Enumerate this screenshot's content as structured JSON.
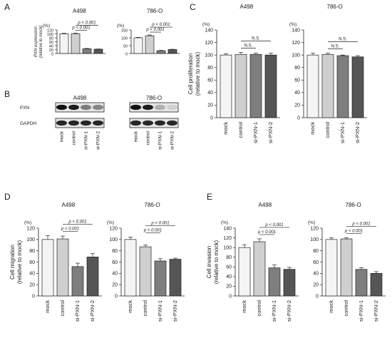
{
  "panel_letters": {
    "A": "A",
    "B": "B",
    "C": "C",
    "D": "D",
    "E": "E"
  },
  "blot": {
    "cells": [
      "A498",
      "786-O"
    ],
    "rows": [
      "PXN",
      "GAPDH"
    ],
    "lanes": [
      "mock",
      "control",
      "si-PXN-1",
      "si-PXN-2"
    ],
    "bands": {
      "A498": {
        "PXN": [
          1.0,
          0.95,
          0.5,
          0.45
        ],
        "GAPDH": [
          0.9,
          0.9,
          0.9,
          0.9
        ]
      },
      "786-O": {
        "PXN": [
          1.0,
          0.95,
          0.25,
          0.1
        ],
        "GAPDH": [
          0.9,
          0.9,
          0.9,
          0.9
        ]
      }
    }
  },
  "chart_data": [
    {
      "id": "A1",
      "type": "bar",
      "panel": "A",
      "title": "A498",
      "ylabel": "PXN expression\n(relative to mock)",
      "unit": "(%)",
      "ylim": [
        0,
        120
      ],
      "yticks": [
        0,
        20,
        40,
        60,
        80,
        100,
        120
      ],
      "categories": [
        "mock",
        "control",
        "si-PXN-1",
        "si-PXN-2"
      ],
      "values": [
        100,
        101,
        24,
        22
      ],
      "errors": [
        3,
        3,
        2,
        1
      ],
      "sig": [
        {
          "from": 1,
          "to": 2,
          "label": "p < 0.001"
        },
        {
          "from": 1,
          "to": 3,
          "label": "p < 0.001"
        }
      ],
      "show_categories": false
    },
    {
      "id": "A2",
      "type": "bar",
      "panel": "A",
      "title": "786-O",
      "ylabel": "",
      "unit": "(%)",
      "ylim": [
        0,
        150
      ],
      "yticks": [
        0,
        50,
        100,
        150
      ],
      "categories": [
        "mock",
        "control",
        "si-PXN-1",
        "si-PXN-2"
      ],
      "values": [
        100,
        113,
        18,
        25
      ],
      "errors": [
        3,
        5,
        2,
        2
      ],
      "sig": [
        {
          "from": 1,
          "to": 2,
          "label": "p < 0.001"
        },
        {
          "from": 1,
          "to": 3,
          "label": "p < 0.001"
        }
      ],
      "show_categories": false
    },
    {
      "id": "C1",
      "type": "bar",
      "panel": "C",
      "title": "A498",
      "ylabel": "Cell proliferation\n(relative to mock)",
      "unit": "(%)",
      "ylim": [
        0,
        140
      ],
      "yticks": [
        0,
        20,
        40,
        60,
        80,
        100,
        120,
        140
      ],
      "categories": [
        "mock",
        "control",
        "si-PXN-1",
        "si-PXN-2"
      ],
      "values": [
        100,
        101,
        101,
        100
      ],
      "errors": [
        2,
        3,
        2,
        3
      ],
      "sig": [
        {
          "from": 1,
          "to": 2,
          "label": "N.S."
        },
        {
          "from": 1,
          "to": 3,
          "label": "N.S."
        }
      ],
      "show_categories": true
    },
    {
      "id": "C2",
      "type": "bar",
      "panel": "C",
      "title": "786-O",
      "ylabel": "",
      "unit": "(%)",
      "ylim": [
        0,
        140
      ],
      "yticks": [
        0,
        20,
        40,
        60,
        80,
        100,
        120,
        140
      ],
      "categories": [
        "mock",
        "control",
        "si-PXN-1",
        "si-PXN-2"
      ],
      "values": [
        100,
        101,
        99,
        97
      ],
      "errors": [
        3,
        2,
        1,
        2
      ],
      "sig": [
        {
          "from": 1,
          "to": 2,
          "label": "N.S."
        },
        {
          "from": 1,
          "to": 3,
          "label": "N.S."
        }
      ],
      "show_categories": true
    },
    {
      "id": "D1",
      "type": "bar",
      "panel": "D",
      "title": "A498",
      "ylabel": "Cell migration\n(relative to mock)",
      "unit": "(%)",
      "ylim": [
        0,
        120
      ],
      "yticks": [
        0,
        20,
        40,
        60,
        80,
        100,
        120
      ],
      "categories": [
        "mock",
        "control",
        "si-PXN-1",
        "si-PXN-2"
      ],
      "values": [
        100,
        101,
        52,
        69
      ],
      "errors": [
        7,
        5,
        6,
        6
      ],
      "sig": [
        {
          "from": 1,
          "to": 2,
          "label": "p < 0.001"
        },
        {
          "from": 1,
          "to": 3,
          "label": "p < 0.001"
        }
      ],
      "show_categories": true
    },
    {
      "id": "D2",
      "type": "bar",
      "panel": "D",
      "title": "786-O",
      "ylabel": "",
      "unit": "(%)",
      "ylim": [
        0,
        120
      ],
      "yticks": [
        0,
        20,
        40,
        60,
        80,
        100,
        120
      ],
      "categories": [
        "mock",
        "control",
        "si-PXN-1",
        "si-PXN-2"
      ],
      "values": [
        100,
        87,
        62,
        65
      ],
      "errors": [
        4,
        3,
        4,
        2
      ],
      "sig": [
        {
          "from": 1,
          "to": 2,
          "label": "p < 0.001"
        },
        {
          "from": 1,
          "to": 3,
          "label": "p < 0.001"
        }
      ],
      "show_categories": true
    },
    {
      "id": "E1",
      "type": "bar",
      "panel": "E",
      "title": "A498",
      "ylabel": "Cell invasion\n(relative to mock)",
      "unit": "(%)",
      "ylim": [
        0,
        140
      ],
      "yticks": [
        0,
        20,
        40,
        60,
        80,
        100,
        120,
        140
      ],
      "categories": [
        "mock",
        "control",
        "si-PXN-1",
        "si-PXN-2"
      ],
      "values": [
        100,
        112,
        58,
        55
      ],
      "errors": [
        6,
        6,
        6,
        4
      ],
      "sig": [
        {
          "from": 1,
          "to": 2,
          "label": "p < 0.001"
        },
        {
          "from": 1,
          "to": 3,
          "label": "p < 0.001"
        }
      ],
      "show_categories": true
    },
    {
      "id": "E2",
      "type": "bar",
      "panel": "E",
      "title": "786-O",
      "ylabel": "",
      "unit": "(%)",
      "ylim": [
        0,
        120
      ],
      "yticks": [
        0,
        20,
        40,
        60,
        80,
        100,
        120
      ],
      "categories": [
        "mock",
        "control",
        "si-PXN-1",
        "si-PXN-2"
      ],
      "values": [
        100,
        101,
        47,
        40
      ],
      "errors": [
        3,
        2,
        3,
        3
      ],
      "sig": [
        {
          "from": 1,
          "to": 2,
          "label": "p < 0.001"
        },
        {
          "from": 1,
          "to": 3,
          "label": "p < 0.001"
        }
      ],
      "show_categories": true
    }
  ],
  "colors": {
    "bars": [
      "#f4f4f4",
      "#cfcfcf",
      "#7e7e7e",
      "#555555"
    ],
    "axis": "#222222"
  }
}
